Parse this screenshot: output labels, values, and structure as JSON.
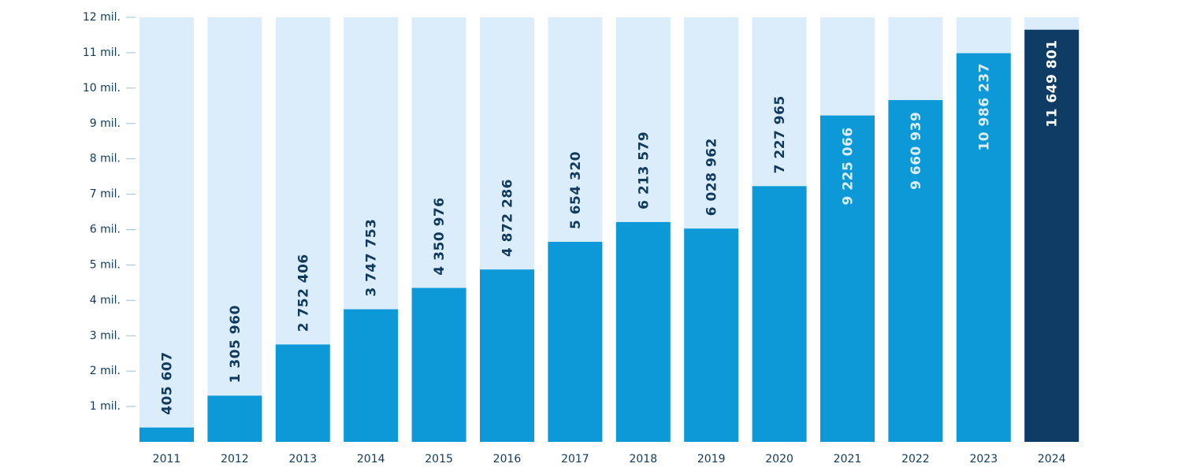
{
  "chart_data": {
    "type": "bar",
    "title": "",
    "xlabel": "",
    "ylabel": "",
    "ylim": [
      0,
      12000000
    ],
    "yticks": [
      {
        "value": 1000000,
        "label": "1 mil."
      },
      {
        "value": 2000000,
        "label": "2 mil."
      },
      {
        "value": 3000000,
        "label": "3 mil."
      },
      {
        "value": 4000000,
        "label": "4 mil."
      },
      {
        "value": 5000000,
        "label": "5 mil."
      },
      {
        "value": 6000000,
        "label": "6 mil."
      },
      {
        "value": 7000000,
        "label": "7 mil."
      },
      {
        "value": 8000000,
        "label": "8 mil."
      },
      {
        "value": 9000000,
        "label": "9 mil."
      },
      {
        "value": 10000000,
        "label": "10 mil."
      },
      {
        "value": 11000000,
        "label": "11 mil."
      },
      {
        "value": 12000000,
        "label": "12 mil."
      }
    ],
    "categories": [
      "2011",
      "2012",
      "2013",
      "2014",
      "2015",
      "2016",
      "2017",
      "2018",
      "2019",
      "2020",
      "2021",
      "2022",
      "2023",
      "2024"
    ],
    "values": [
      405607,
      1305960,
      2752406,
      3747753,
      4350976,
      4872286,
      5654320,
      6213579,
      6028962,
      7227965,
      9225066,
      9660939,
      10986237,
      11649801
    ],
    "value_labels": [
      "405 607",
      "1 305 960",
      "2 752 406",
      "3 747 753",
      "4 350 976",
      "4 872 286",
      "5 654 320",
      "6 213 579",
      "6 028 962",
      "7 227 965",
      "9 225 066",
      "9 660 939",
      "10 986 237",
      "11 649 801"
    ],
    "grid": false,
    "legend": "none",
    "colors": {
      "track": "#dbedfa",
      "bar": "#0d99d8",
      "highlight_bar": "#0e3c64",
      "label_dark": "#0f3a5e",
      "label_light": "#dbedfa",
      "label_on_highlight": "#ffffff",
      "axis_text": "#0f3a5e",
      "tick": "#9dbfd8"
    },
    "highlight_index": 13
  }
}
